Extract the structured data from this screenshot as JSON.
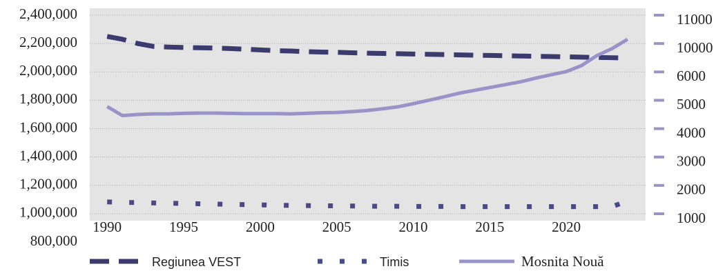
{
  "chart_data": {
    "type": "line",
    "x": [
      1990,
      1991,
      1992,
      1993,
      1994,
      1995,
      1996,
      1997,
      1998,
      1999,
      2000,
      2001,
      2002,
      2003,
      2004,
      2005,
      2006,
      2007,
      2008,
      2009,
      2010,
      2011,
      2012,
      2013,
      2014,
      2015,
      2016,
      2017,
      2018,
      2019,
      2020,
      2021,
      2022,
      2023,
      2024
    ],
    "xlim": [
      1989,
      2025
    ],
    "xticks": [
      1990,
      1995,
      2000,
      2005,
      2010,
      2015,
      2020
    ],
    "ylim": [
      800000,
      2400000
    ],
    "yticks": [
      {
        "value": 800000,
        "label": "800,000"
      },
      {
        "value": 1000000,
        "label": "1,000,000"
      },
      {
        "value": 1200000,
        "label": "1,200,000"
      },
      {
        "value": 1400000,
        "label": "1,400,000"
      },
      {
        "value": 1600000,
        "label": "1,600,000"
      },
      {
        "value": 1800000,
        "label": "1,800,000"
      },
      {
        "value": 2000000,
        "label": "2,000,000"
      },
      {
        "value": 2200000,
        "label": "2,200,000"
      },
      {
        "value": 2400000,
        "label": "2,400,000"
      }
    ],
    "y2lim": [
      1000,
      11000
    ],
    "y2ticks": [
      1000,
      2000,
      3000,
      4000,
      5000,
      6000,
      10000,
      11000
    ],
    "grid": true,
    "legend": "bottom",
    "series": [
      {
        "name": "Regiunea VEST",
        "color": "#3b3b6e",
        "style": "dashed",
        "values": [
          2250000,
          2230000,
          2200000,
          2180000,
          2175000,
          2172000,
          2170000,
          2168000,
          2165000,
          2160000,
          2155000,
          2150000,
          2147000,
          2143000,
          2140000,
          2138000,
          2135000,
          2132000,
          2130000,
          2128000,
          2126000,
          2124000,
          2122000,
          2120000,
          2118000,
          2116000,
          2114000,
          2112000,
          2110000,
          2108000,
          2106000,
          2104000,
          2102000,
          2100000,
          2098000
        ]
      },
      {
        "name": "Timis",
        "color": "#4a4a88",
        "style": "dotted",
        "values": [
          1083000,
          1080000,
          1078000,
          1076000,
          1074000,
          1072000,
          1070000,
          1068000,
          1066000,
          1064000,
          1062000,
          1060000,
          1058000,
          1057000,
          1056000,
          1055000,
          1054000,
          1053000,
          1052000,
          1052000,
          1051000,
          1051000,
          1051000,
          1050000,
          1050000,
          1050000,
          1050000,
          1050000,
          1050000,
          1050000,
          1050000,
          1050000,
          1050000,
          1050000,
          1090000
        ]
      },
      {
        "name": "Mosnita Nouă",
        "color": "#9a93c8",
        "style": "solid",
        "axis": "y2",
        "values": [
          4780,
          4460,
          4500,
          4520,
          4520,
          4540,
          4550,
          4550,
          4540,
          4530,
          4530,
          4530,
          4520,
          4540,
          4560,
          4570,
          4600,
          4640,
          4700,
          4770,
          4880,
          5000,
          5120,
          5250,
          5350,
          5450,
          5550,
          5650,
          5780,
          5900,
          6050,
          6900,
          8300,
          9300,
          10150
        ]
      }
    ]
  }
}
